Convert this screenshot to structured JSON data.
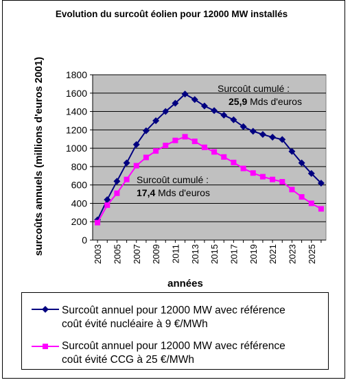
{
  "title": "Evolution du surcoût éolien pour 12000 MW installés",
  "chart_data": {
    "type": "line",
    "title": "Evolution du surcoût éolien pour 12000 MW installés",
    "xlabel": "années",
    "ylabel": "surcoûts annuels (millions d'euros 2001)",
    "ylim": [
      0,
      1800
    ],
    "yticks": [
      "0",
      "200",
      "400",
      "600",
      "800",
      "1000",
      "1200",
      "1400",
      "1600",
      "1800"
    ],
    "x": [
      2003,
      2004,
      2005,
      2006,
      2007,
      2008,
      2009,
      2010,
      2011,
      2012,
      2013,
      2014,
      2015,
      2016,
      2017,
      2018,
      2019,
      2020,
      2021,
      2022,
      2023,
      2024,
      2025,
      2026
    ],
    "xticks": [
      "2003",
      "2005",
      "2007",
      "2009",
      "2011",
      "2013",
      "2015",
      "2017",
      "2019",
      "2021",
      "2023",
      "2025"
    ],
    "grid": "horizontal",
    "legend_position": "bottom",
    "series": [
      {
        "name": "Surcoût annuel pour 12000 MW avec référence coût évité nucléaire à 9 €/MWh",
        "color": "#000080",
        "marker": "diamond",
        "values": [
          220,
          440,
          640,
          840,
          1040,
          1190,
          1300,
          1400,
          1490,
          1590,
          1530,
          1460,
          1410,
          1360,
          1310,
          1235,
          1185,
          1150,
          1120,
          1095,
          965,
          840,
          725,
          620
        ]
      },
      {
        "name": "Surcoût annuel pour 12000 MW avec référence coût évité CCG à 25 €/MWh",
        "color": "#ff00ff",
        "marker": "square",
        "values": [
          190,
          380,
          510,
          660,
          810,
          900,
          970,
          1030,
          1085,
          1125,
          1075,
          1010,
          960,
          905,
          845,
          780,
          730,
          690,
          660,
          635,
          550,
          470,
          400,
          340
        ]
      }
    ],
    "annotations": [
      {
        "line1": "Surcoût cumulé :",
        "value": "25,9",
        "unit": " Mds d'euros"
      },
      {
        "line1": "Surcoût cumulé :",
        "value": "17,4",
        "unit": " Mds d'euros"
      }
    ]
  },
  "legend": [
    {
      "line1": "Surcoût annuel pour 12000 MW avec référence",
      "line2": "coût évité nucléaire à  9 €/MWh"
    },
    {
      "line1": "Surcoût annuel pour 12000 MW avec référence",
      "line2": "coût évité CCG à 25 €/MWh"
    }
  ]
}
